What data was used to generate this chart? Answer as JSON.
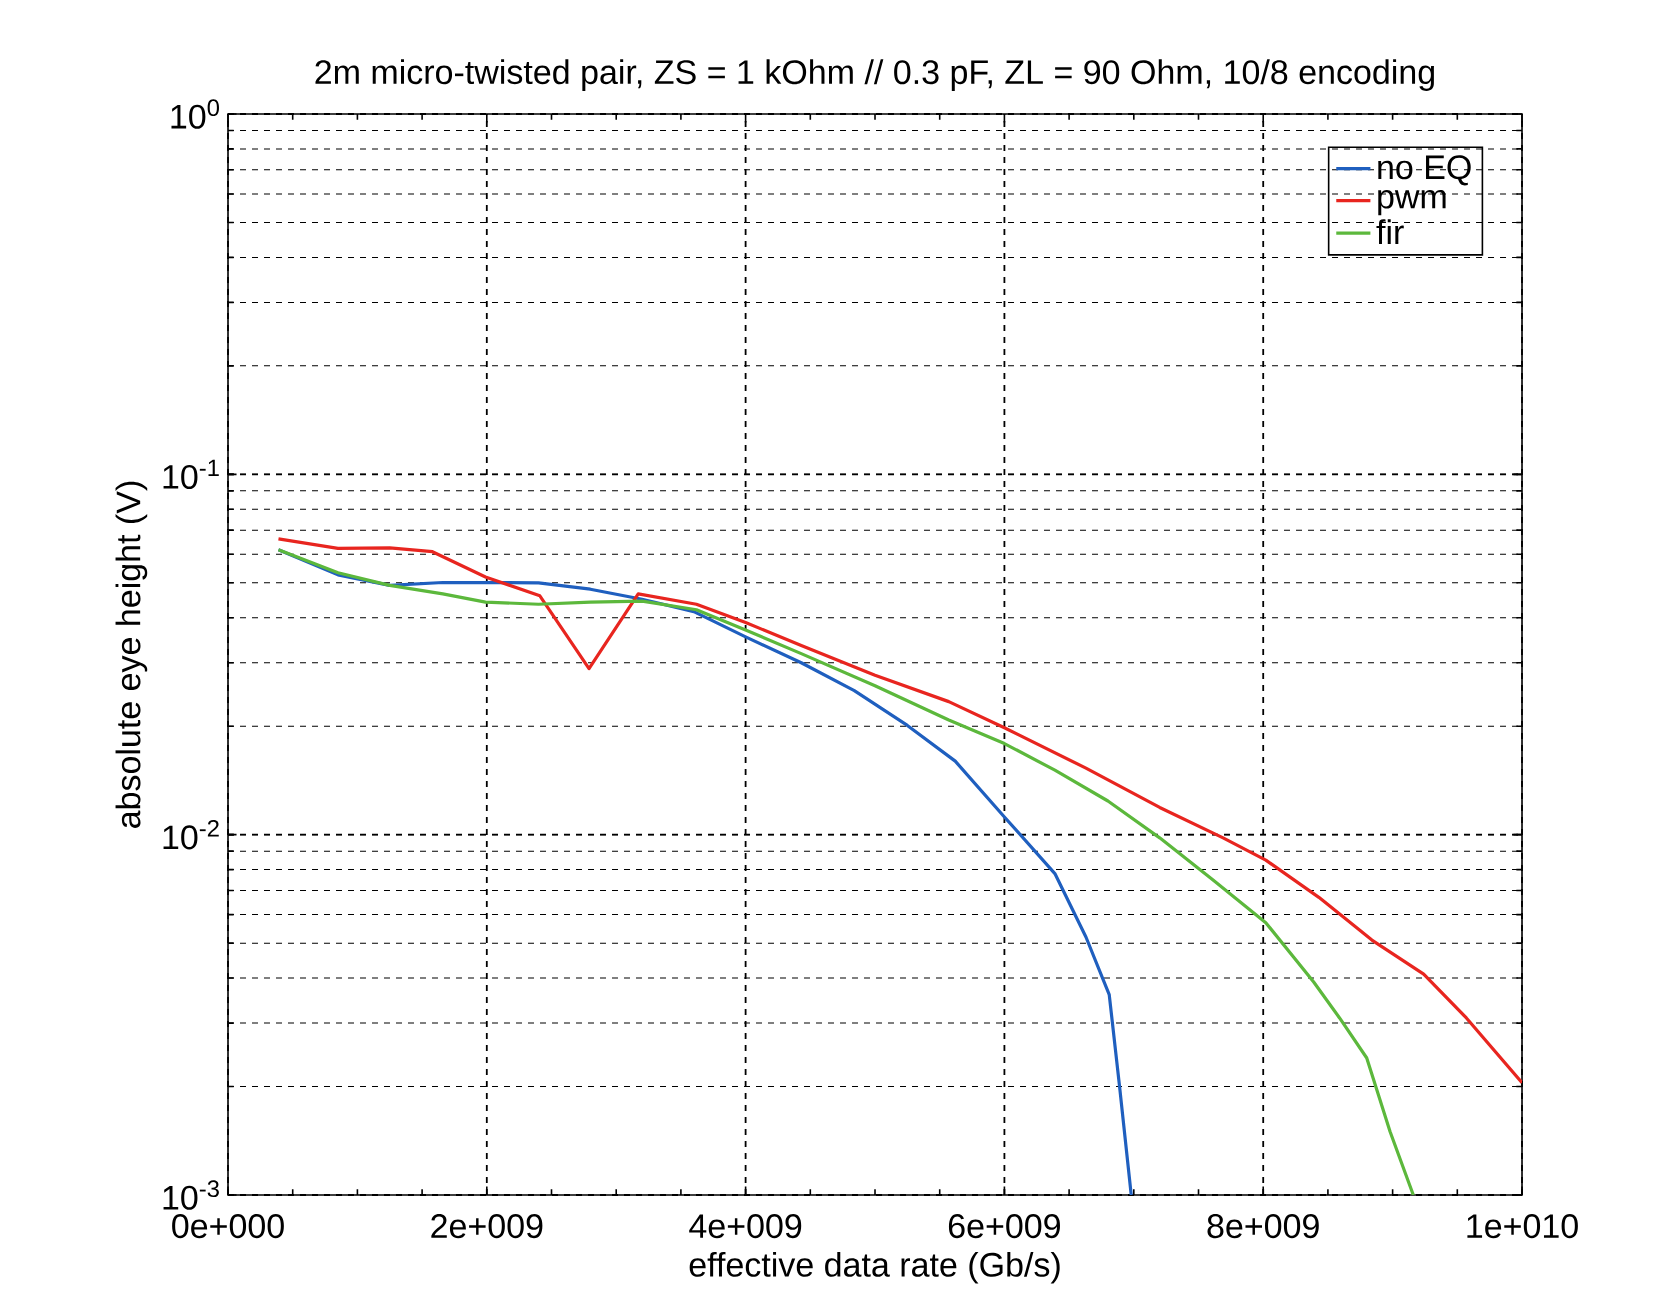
{
  "chart_data": {
    "type": "line",
    "title": "2m micro-twisted pair, ZS = 1 kOhm // 0.3 pF, ZL = 90 Ohm, 10/8 encoding",
    "xlabel": "effective data rate (Gb/s)",
    "ylabel": "absolute eye height (V)",
    "log": "y",
    "grid": true,
    "legend": "top right",
    "marker": "none",
    "line_style": "solid",
    "xlim": [
      0,
      10000000000
    ],
    "ylim": [
      0.001,
      1
    ],
    "xticks": [
      {
        "value": 0,
        "label": "0e+000"
      },
      {
        "value": 2000000000,
        "label": "2e+009"
      },
      {
        "value": 4000000000,
        "label": "4e+009"
      },
      {
        "value": 6000000000,
        "label": "6e+009"
      },
      {
        "value": 8000000000,
        "label": "8e+009"
      },
      {
        "value": 10000000000,
        "label": "1e+010"
      }
    ],
    "yticks": [
      {
        "value": 0.001,
        "label": "10$^{-3}$"
      },
      {
        "value": 0.01,
        "label": "10$^{-2}$"
      },
      {
        "value": 0.1,
        "label": "10$^{-1}$"
      },
      {
        "value": 1,
        "label": "10$^{0}$"
      }
    ],
    "series": [
      {
        "name": "no EQ",
        "color": "#1f5fbf",
        "x": [
          390000000,
          850000000,
          1250000000,
          1660000000,
          2400000000,
          2800000000,
          3200000000,
          3600000000,
          4000000000,
          4430000000,
          4840000000,
          5250000000,
          5620000000,
          6000000000,
          6390000000,
          6630000000,
          6810000000,
          6890000000,
          6980000000
        ],
        "values": [
          0.0618,
          0.0526,
          0.0492,
          0.0501,
          0.05,
          0.048,
          0.045,
          0.0416,
          0.0354,
          0.03,
          0.0251,
          0.0201,
          0.016,
          0.0112,
          0.0078,
          0.0052,
          0.0036,
          0.002,
          0.001
        ]
      },
      {
        "name": "pwm",
        "color": "#e8251f",
        "x": [
          390000000,
          850000000,
          1250000000,
          1580000000,
          1990000000,
          2410000000,
          2790000000,
          3170000000,
          3620000000,
          4000000000,
          4430000000,
          5000000000,
          5570000000,
          6000000000,
          6630000000,
          7200000000,
          7690000000,
          8020000000,
          8430000000,
          8840000000,
          9240000000,
          9570000000,
          10000000000
        ],
        "values": [
          0.0662,
          0.0623,
          0.0625,
          0.061,
          0.0519,
          0.046,
          0.0289,
          0.0466,
          0.0436,
          0.0388,
          0.0335,
          0.0277,
          0.0234,
          0.0198,
          0.0153,
          0.0119,
          0.0098,
          0.0085,
          0.0067,
          0.0051,
          0.0041,
          0.0031,
          0.00205
        ]
      },
      {
        "name": "fir",
        "color": "#5cb83c",
        "x": [
          390000000,
          850000000,
          1250000000,
          1660000000,
          1990000000,
          2400000000,
          2800000000,
          3200000000,
          3620000000,
          4000000000,
          4430000000,
          5000000000,
          5570000000,
          6000000000,
          6390000000,
          6800000000,
          7200000000,
          7610000000,
          8020000000,
          8390000000,
          8590000000,
          8800000000,
          8980000000,
          9160000000
        ],
        "values": [
          0.0618,
          0.0533,
          0.0492,
          0.0466,
          0.0442,
          0.0436,
          0.0442,
          0.0445,
          0.0421,
          0.037,
          0.0318,
          0.0259,
          0.0208,
          0.0179,
          0.0151,
          0.0124,
          0.0098,
          0.0075,
          0.0057,
          0.0039,
          0.0031,
          0.0024,
          0.0015,
          0.001
        ]
      }
    ]
  }
}
